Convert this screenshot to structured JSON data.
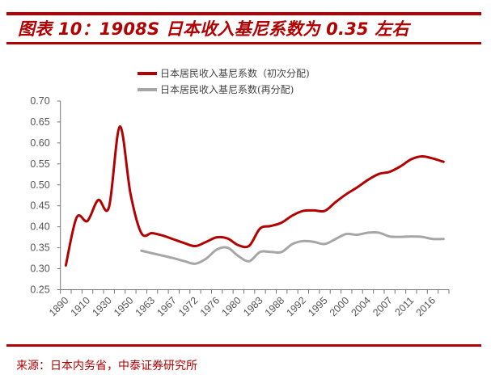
{
  "title": "图表 10：1908S 日本收入基尼系数为 0.35 左右",
  "source": "来源：日本内务省，中泰证券研究所",
  "colors": {
    "accent": "#b30000",
    "series_primary": "#b30000",
    "series_secondary": "#a6a6a6"
  },
  "chart_data": {
    "type": "line",
    "title": "",
    "xlabel": "",
    "ylabel": "",
    "ylim": [
      0.25,
      0.7
    ],
    "yticks": [
      "0.25",
      "0.30",
      "0.35",
      "0.40",
      "0.45",
      "0.50",
      "0.55",
      "0.60",
      "0.65",
      "0.70"
    ],
    "grid": false,
    "legend_placement": "top-center",
    "categories": [
      "1890",
      "",
      "1910",
      "",
      "1930",
      "",
      "1950",
      "",
      "1963",
      "",
      "1967",
      "",
      "1972",
      "",
      "1976",
      "",
      "1980",
      "",
      "1983",
      "",
      "1988",
      "",
      "1992",
      "",
      "1995",
      "",
      "2000",
      "",
      "2004",
      "",
      "2007",
      "",
      "2011",
      "",
      "2016",
      ""
    ],
    "series": [
      {
        "name": "日本居民收入基尼系数（初次分配)",
        "color": "#b30000",
        "values": [
          0.308,
          0.422,
          0.414,
          0.464,
          0.447,
          0.639,
          0.478,
          0.385,
          0.385,
          0.379,
          0.37,
          0.361,
          0.354,
          0.364,
          0.375,
          0.372,
          0.356,
          0.355,
          0.396,
          0.402,
          0.41,
          0.427,
          0.438,
          0.439,
          0.438,
          0.459,
          0.478,
          0.494,
          0.512,
          0.526,
          0.531,
          0.544,
          0.561,
          0.568,
          0.563,
          0.555
        ]
      },
      {
        "name": "日本居民收入基尼系数(再分配)",
        "color": "#a6a6a6",
        "values": [
          null,
          null,
          null,
          null,
          null,
          null,
          null,
          0.343,
          0.337,
          0.331,
          0.325,
          0.318,
          0.312,
          0.324,
          0.346,
          0.35,
          0.33,
          0.318,
          0.34,
          0.34,
          0.34,
          0.359,
          0.366,
          0.364,
          0.359,
          0.371,
          0.383,
          0.381,
          0.386,
          0.386,
          0.377,
          0.376,
          0.377,
          0.376,
          0.371,
          0.371
        ]
      }
    ]
  }
}
